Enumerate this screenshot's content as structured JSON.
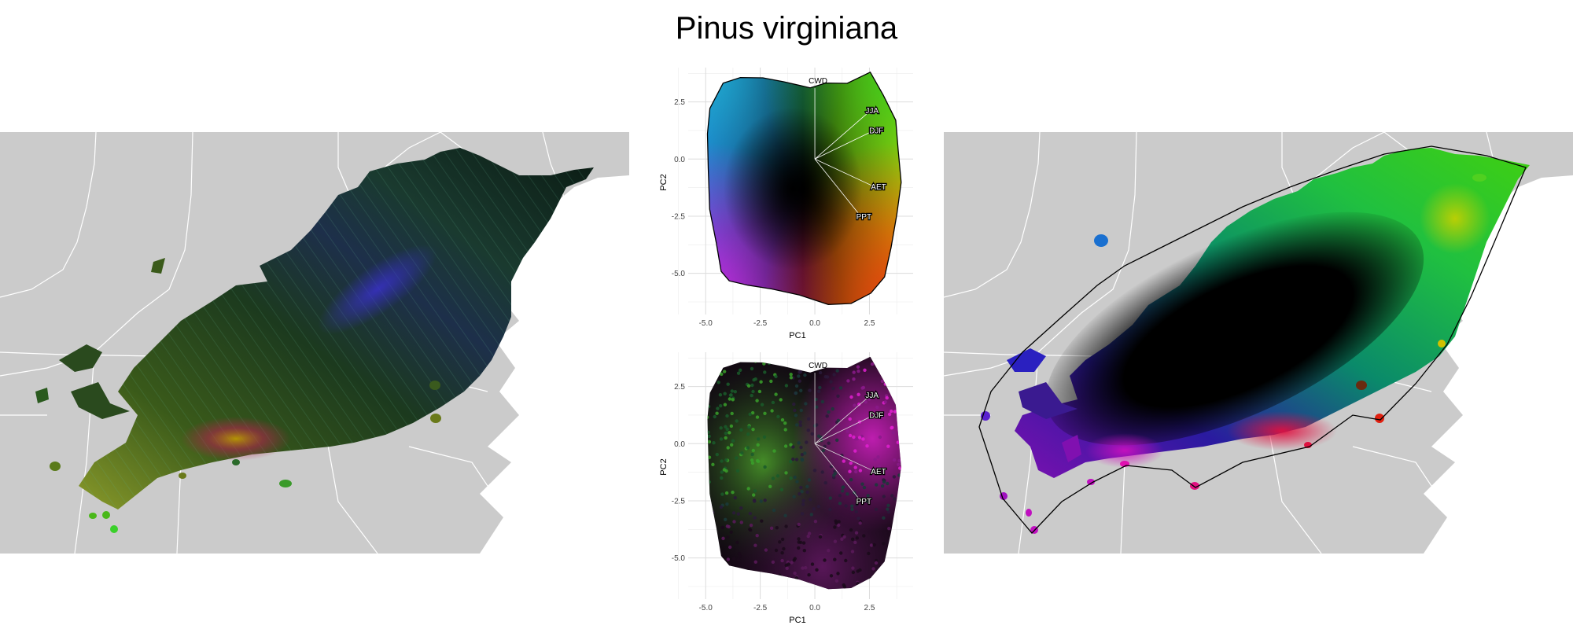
{
  "title": "Pinus virginiana",
  "colors": {
    "land": "#cbcbcb",
    "background": "#ffffff",
    "borders": "#ffffff",
    "hull": "#000000"
  },
  "pca_plots": [
    {
      "name": "pca-top",
      "xlabel": "PC1",
      "ylabel": "PC2",
      "xticks": [
        "-5.0",
        "-2.5",
        "0.0",
        "2.5"
      ],
      "yticks": [
        "2.5",
        "0.0",
        "-2.5",
        "-5.0"
      ],
      "vectors": [
        "CWD",
        "JJA",
        "DJF",
        "AET",
        "PPT"
      ]
    },
    {
      "name": "pca-bottom",
      "xlabel": "PC1",
      "ylabel": "PC2",
      "xticks": [
        "-5.0",
        "-2.5",
        "0.0",
        "2.5"
      ],
      "yticks": [
        "2.5",
        "0.0",
        "-2.5",
        "-5.0"
      ],
      "vectors": [
        "CWD",
        "JJA",
        "DJF",
        "AET",
        "PPT"
      ]
    }
  ],
  "chart_data": [
    {
      "type": "scatter",
      "name": "pca-top",
      "xlabel": "PC1",
      "ylabel": "PC2",
      "xlim": [
        -5.8,
        4.5
      ],
      "ylim": [
        -6.8,
        4.0
      ],
      "vectors": [
        {
          "label": "CWD",
          "x": 0.0,
          "y": 3.1
        },
        {
          "label": "JJA",
          "x": 2.4,
          "y": 2.0
        },
        {
          "label": "DJF",
          "x": 2.6,
          "y": 1.2
        },
        {
          "label": "AET",
          "x": 2.7,
          "y": -1.2
        },
        {
          "label": "PPT",
          "x": 2.1,
          "y": -2.5
        }
      ]
    },
    {
      "type": "scatter",
      "name": "pca-bottom",
      "xlabel": "PC1",
      "ylabel": "PC2",
      "xlim": [
        -5.8,
        4.5
      ],
      "ylim": [
        -6.8,
        4.0
      ],
      "vectors": [
        {
          "label": "CWD",
          "x": 0.0,
          "y": 3.1
        },
        {
          "label": "JJA",
          "x": 2.4,
          "y": 2.0
        },
        {
          "label": "DJF",
          "x": 2.6,
          "y": 1.2
        },
        {
          "label": "AET",
          "x": 2.7,
          "y": -1.2
        },
        {
          "label": "PPT",
          "x": 2.1,
          "y": -2.5
        }
      ]
    }
  ]
}
